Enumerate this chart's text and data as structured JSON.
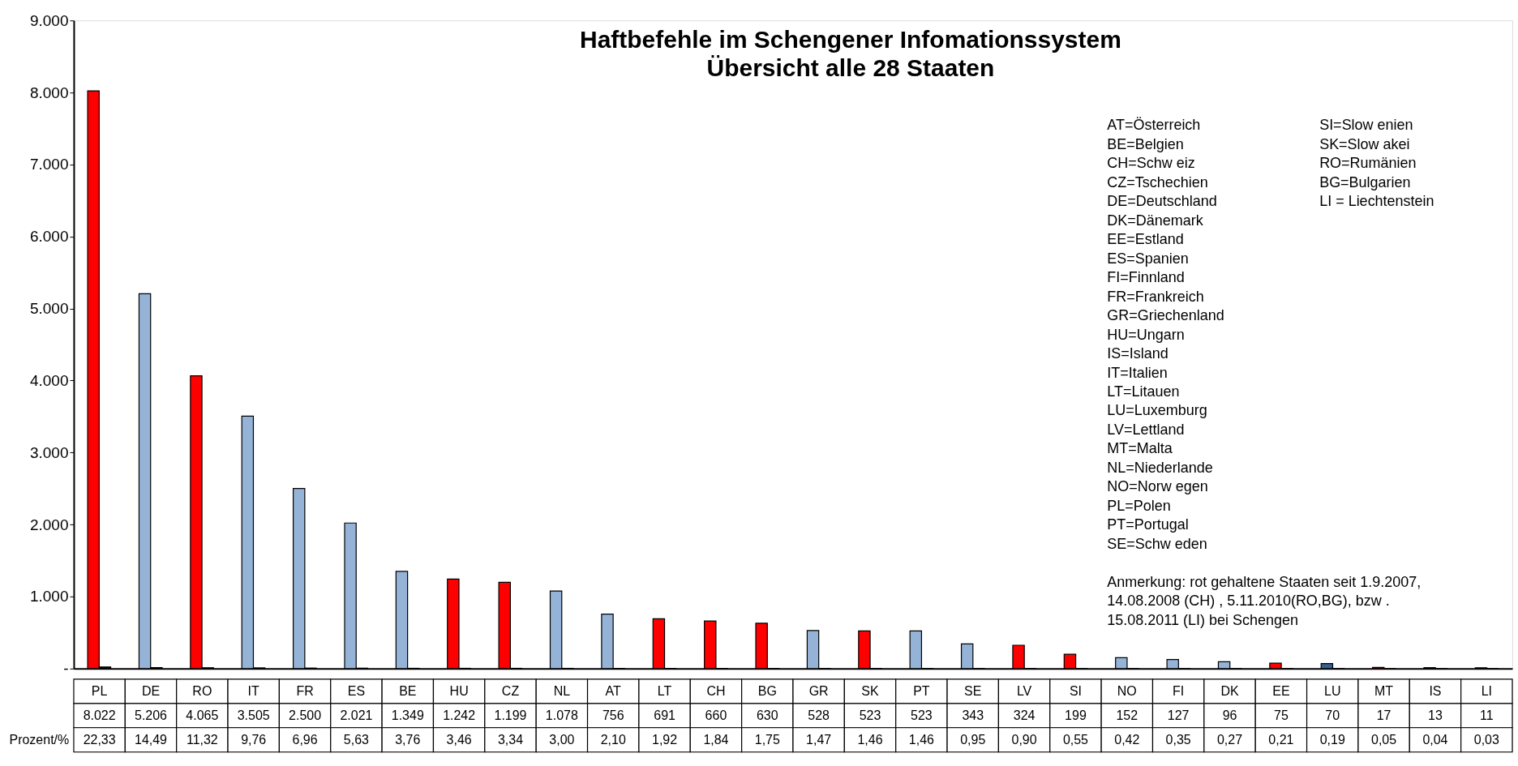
{
  "chart_data": {
    "type": "bar",
    "title": "Haftbefehle im Schengener Infomationssystem",
    "subtitle": "Übersicht alle 28 Staaten",
    "categories": [
      "PL",
      "DE",
      "RO",
      "IT",
      "FR",
      "ES",
      "BE",
      "HU",
      "CZ",
      "NL",
      "AT",
      "LT",
      "CH",
      "BG",
      "GR",
      "SK",
      "PT",
      "SE",
      "LV",
      "SI",
      "NO",
      "FI",
      "DK",
      "EE",
      "LU",
      "MT",
      "IS",
      "LI"
    ],
    "series": [
      {
        "colors": [
          "#ff0000",
          "#95b3d7",
          "#ff0000",
          "#95b3d7",
          "#95b3d7",
          "#95b3d7",
          "#95b3d7",
          "#ff0000",
          "#ff0000",
          "#95b3d7",
          "#95b3d7",
          "#ff0000",
          "#ff0000",
          "#ff0000",
          "#95b3d7",
          "#ff0000",
          "#95b3d7",
          "#95b3d7",
          "#ff0000",
          "#ff0000",
          "#95b3d7",
          "#95b3d7",
          "#95b3d7",
          "#ff0000",
          "#366092",
          "#ff0000",
          "#95b3d7",
          "#ff0000"
        ],
        "values": [
          8022,
          5206,
          4065,
          3505,
          2500,
          2021,
          1349,
          1242,
          1199,
          1078,
          756,
          691,
          660,
          630,
          528,
          523,
          523,
          343,
          324,
          199,
          152,
          127,
          96,
          75,
          70,
          17,
          13,
          11
        ],
        "value_labels": [
          "8.022",
          "5.206",
          "4.065",
          "3.505",
          "2.500",
          "2.021",
          "1.349",
          "1.242",
          "1.199",
          "1.078",
          "756",
          "691",
          "660",
          "630",
          "528",
          "523",
          "523",
          "343",
          "324",
          "199",
          "152",
          "127",
          "96",
          "75",
          "70",
          "17",
          "13",
          "11"
        ]
      },
      {
        "name": "Prozent/%",
        "color": "#000000",
        "values": [
          22.33,
          14.49,
          11.32,
          9.76,
          6.96,
          5.63,
          3.76,
          3.46,
          3.34,
          3.0,
          2.1,
          1.92,
          1.84,
          1.75,
          1.47,
          1.46,
          1.46,
          0.95,
          0.9,
          0.55,
          0.42,
          0.35,
          0.27,
          0.21,
          0.19,
          0.05,
          0.04,
          0.03
        ],
        "value_labels": [
          "22,33",
          "14,49",
          "11,32",
          "9,76",
          "6,96",
          "5,63",
          "3,76",
          "3,46",
          "3,34",
          "3,00",
          "2,10",
          "1,92",
          "1,84",
          "1,75",
          "1,47",
          "1,46",
          "1,46",
          "0,95",
          "0,90",
          "0,55",
          "0,42",
          "0,35",
          "0,27",
          "0,21",
          "0,19",
          "0,05",
          "0,04",
          "0,03"
        ]
      }
    ],
    "ylim": [
      0,
      9000
    ],
    "yticks": [
      {
        "value": 0,
        "label": "-"
      },
      {
        "value": 1000,
        "label": "1.000"
      },
      {
        "value": 2000,
        "label": "2.000"
      },
      {
        "value": 3000,
        "label": "3.000"
      },
      {
        "value": 4000,
        "label": "4.000"
      },
      {
        "value": 5000,
        "label": "5.000"
      },
      {
        "value": 6000,
        "label": "6.000"
      },
      {
        "value": 7000,
        "label": "7.000"
      },
      {
        "value": 8000,
        "label": "8.000"
      },
      {
        "value": 9000,
        "label": "9.000"
      }
    ],
    "annotations": [
      "AT=Österreich",
      "BE=Belgien",
      "CH=Schw eiz",
      "CZ=Tschechien",
      "DE=Deutschland",
      "DK=Dänemark",
      "EE=Estland",
      "ES=Spanien",
      "FI=Finnland",
      "FR=Frankreich",
      "GR=Griechenland",
      "HU=Ungarn",
      "IS=Island",
      "IT=Italien",
      "LT=Litauen",
      "LU=Luxemburg",
      "LV=Lettland",
      "MT=Malta",
      "NL=Niederlande",
      "NO=Norw egen",
      "PL=Polen",
      "PT=Portugal",
      "SE=Schw eden",
      "SI=Slow enien",
      "SK=Slow akei",
      "RO=Rumänien",
      "BG=Bulgarien",
      "LI = Liechtenstein",
      "Anmerkung:  rot gehaltene Staaten seit 1.9.2007, 14.08.2008 (CH)  , 5.11.2010(RO,BG),  bzw . 15.08.2011 (LI) bei Schengen"
    ]
  }
}
